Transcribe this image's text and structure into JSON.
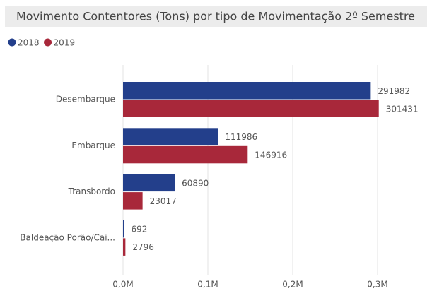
{
  "chart_data": {
    "type": "bar",
    "orientation": "horizontal",
    "title": "Movimento Contentores (Tons) por tipo de Movimentação 2º Semestre",
    "categories": [
      "Desembarque",
      "Embarque",
      "Transbordo",
      "Baldeação Porão/Cai..."
    ],
    "series": [
      {
        "name": "2018",
        "color": "#233f8b",
        "values": [
          291982,
          111986,
          60890,
          692
        ]
      },
      {
        "name": "2019",
        "color": "#a8283a",
        "values": [
          301431,
          146916,
          23017,
          2796
        ]
      }
    ],
    "xlim": [
      0,
      350000
    ],
    "xticks": [
      {
        "value": 0,
        "label": "0,0M"
      },
      {
        "value": 100000,
        "label": "0,1M"
      },
      {
        "value": 200000,
        "label": "0,2M"
      },
      {
        "value": 300000,
        "label": "0,3M"
      }
    ],
    "grid": true,
    "legend": "top-left"
  }
}
